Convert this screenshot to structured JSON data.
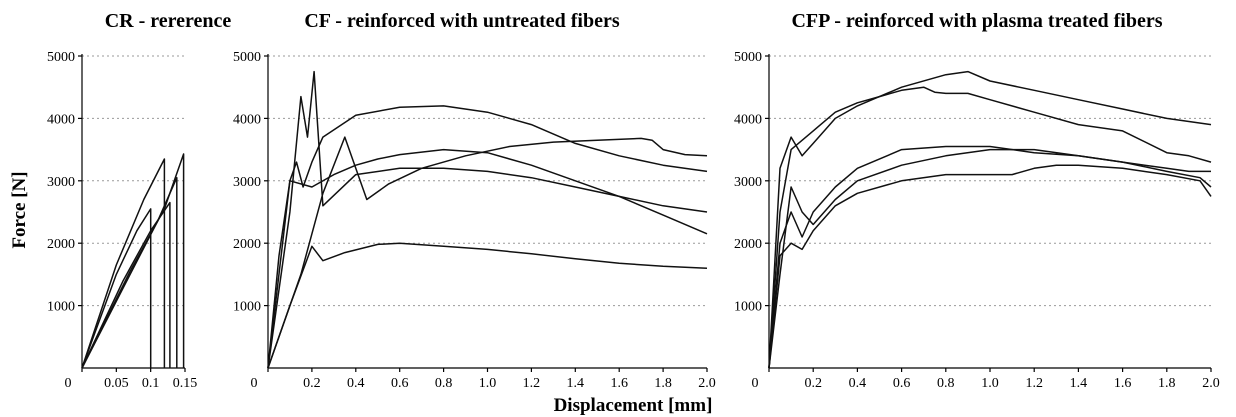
{
  "figure": {
    "ylabel": "Force [N]",
    "xlabel": "Displacement [mm]"
  },
  "chart_data": [
    {
      "type": "line",
      "title": "CR - rererence",
      "xlim": [
        0,
        0.15
      ],
      "ylim": [
        0,
        5000
      ],
      "x_ticks": [
        0,
        0.05,
        0.1,
        0.15
      ],
      "x_tick_labels": [
        "0",
        "0.05",
        "0.1",
        "0.15"
      ],
      "y_ticks": [
        1000,
        2000,
        3000,
        4000,
        5000
      ],
      "y_tick_labels": [
        "1000",
        "2000",
        "3000",
        "4000",
        "5000"
      ],
      "grid": true,
      "series": [
        {
          "x": [
            0,
            0.05,
            0.08,
            0.1,
            0.1
          ],
          "y": [
            0,
            1500,
            2200,
            2550,
            0
          ]
        },
        {
          "x": [
            0,
            0.05,
            0.09,
            0.12,
            0.12
          ],
          "y": [
            0,
            1650,
            2700,
            3350,
            0
          ]
        },
        {
          "x": [
            0,
            0.06,
            0.1,
            0.128,
            0.128
          ],
          "y": [
            0,
            1400,
            2200,
            2650,
            0
          ]
        },
        {
          "x": [
            0,
            0.07,
            0.11,
            0.138,
            0.138
          ],
          "y": [
            0,
            1500,
            2350,
            3050,
            0
          ]
        },
        {
          "x": [
            0,
            0.07,
            0.12,
            0.148,
            0.148
          ],
          "y": [
            0,
            1550,
            2550,
            3430,
            0
          ]
        }
      ]
    },
    {
      "type": "line",
      "title": "CF - reinforced with untreated fibers",
      "xlim": [
        0,
        2.0
      ],
      "ylim": [
        0,
        5000
      ],
      "x_ticks": [
        0,
        0.2,
        0.4,
        0.6,
        0.8,
        1.0,
        1.2,
        1.4,
        1.6,
        1.8,
        2.0
      ],
      "x_tick_labels": [
        "0",
        "0.2",
        "0.4",
        "0.6",
        "0.8",
        "1.0",
        "1.2",
        "1.4",
        "1.6",
        "1.8",
        "2.0"
      ],
      "y_ticks": [
        1000,
        2000,
        3000,
        4000,
        5000
      ],
      "y_tick_labels": [
        "1000",
        "2000",
        "3000",
        "4000",
        "5000"
      ],
      "grid": true,
      "series": [
        {
          "x": [
            0,
            0.1,
            0.15,
            0.18,
            0.21,
            0.25,
            0.4,
            0.6,
            0.8,
            1.0,
            1.2,
            1.4,
            1.6,
            1.8,
            2.0
          ],
          "y": [
            0,
            2500,
            4350,
            3700,
            4750,
            2600,
            3100,
            3200,
            3200,
            3150,
            3050,
            2900,
            2750,
            2600,
            2500
          ]
        },
        {
          "x": [
            0,
            0.05,
            0.1,
            0.13,
            0.16,
            0.2,
            0.25,
            0.4,
            0.6,
            0.8,
            1.0,
            1.2,
            1.4,
            1.6,
            1.8,
            2.0
          ],
          "y": [
            0,
            1800,
            3000,
            3300,
            2900,
            3300,
            3700,
            4050,
            4180,
            4200,
            4100,
            3900,
            3600,
            3400,
            3250,
            3150
          ]
        },
        {
          "x": [
            0,
            0.15,
            0.25,
            0.35,
            0.45,
            0.55,
            0.7,
            0.9,
            1.1,
            1.3,
            1.5,
            1.7,
            1.75,
            1.8,
            1.9,
            2.0
          ],
          "y": [
            0,
            1500,
            2800,
            3700,
            2700,
            2950,
            3200,
            3400,
            3550,
            3620,
            3650,
            3680,
            3650,
            3500,
            3420,
            3400
          ]
        },
        {
          "x": [
            0,
            0.1,
            0.2,
            0.3,
            0.4,
            0.5,
            0.6,
            0.8,
            1.0,
            1.2,
            1.4,
            1.6,
            1.8,
            2.0
          ],
          "y": [
            0,
            3000,
            2900,
            3100,
            3250,
            3350,
            3420,
            3500,
            3450,
            3250,
            3000,
            2750,
            2450,
            2150
          ]
        },
        {
          "x": [
            0,
            0.1,
            0.2,
            0.25,
            0.35,
            0.5,
            0.6,
            0.8,
            1.0,
            1.2,
            1.4,
            1.6,
            1.8,
            2.0
          ],
          "y": [
            0,
            1000,
            1950,
            1720,
            1850,
            1980,
            2000,
            1950,
            1900,
            1830,
            1750,
            1680,
            1630,
            1600
          ]
        }
      ]
    },
    {
      "type": "line",
      "title": "CFP - reinforced with plasma treated fibers",
      "xlim": [
        0,
        2.0
      ],
      "ylim": [
        0,
        5000
      ],
      "x_ticks": [
        0,
        0.2,
        0.4,
        0.6,
        0.8,
        1.0,
        1.2,
        1.4,
        1.6,
        1.8,
        2.0
      ],
      "x_tick_labels": [
        "0",
        "0.2",
        "0.4",
        "0.6",
        "0.8",
        "1.0",
        "1.2",
        "1.4",
        "1.6",
        "1.8",
        "2.0"
      ],
      "y_ticks": [
        1000,
        2000,
        3000,
        4000,
        5000
      ],
      "y_tick_labels": [
        "1000",
        "2000",
        "3000",
        "4000",
        "5000"
      ],
      "grid": true,
      "series": [
        {
          "x": [
            0,
            0.05,
            0.1,
            0.15,
            0.2,
            0.3,
            0.4,
            0.6,
            0.8,
            0.9,
            1.0,
            1.2,
            1.4,
            1.6,
            1.8,
            2.0
          ],
          "y": [
            0,
            3200,
            3700,
            3400,
            3600,
            4000,
            4200,
            4500,
            4700,
            4750,
            4600,
            4450,
            4300,
            4150,
            4000,
            3900
          ]
        },
        {
          "x": [
            0,
            0.05,
            0.1,
            0.2,
            0.3,
            0.4,
            0.5,
            0.6,
            0.7,
            0.75,
            0.8,
            0.9,
            1.0,
            1.2,
            1.4,
            1.6,
            1.8,
            1.9,
            2.0
          ],
          "y": [
            0,
            2500,
            3500,
            3800,
            4100,
            4250,
            4350,
            4450,
            4500,
            4420,
            4400,
            4400,
            4300,
            4100,
            3900,
            3800,
            3450,
            3400,
            3300
          ]
        },
        {
          "x": [
            0,
            0.05,
            0.1,
            0.15,
            0.2,
            0.3,
            0.4,
            0.6,
            0.8,
            1.0,
            1.2,
            1.4,
            1.6,
            1.8,
            1.9,
            2.0
          ],
          "y": [
            0,
            2000,
            2500,
            2100,
            2500,
            2900,
            3200,
            3500,
            3550,
            3550,
            3450,
            3400,
            3300,
            3200,
            3150,
            3150
          ]
        },
        {
          "x": [
            0,
            0.05,
            0.1,
            0.15,
            0.2,
            0.3,
            0.4,
            0.6,
            0.8,
            1.0,
            1.2,
            1.4,
            1.6,
            1.8,
            1.95,
            2.0
          ],
          "y": [
            0,
            1500,
            2900,
            2500,
            2300,
            2700,
            3000,
            3250,
            3400,
            3500,
            3500,
            3400,
            3300,
            3150,
            3050,
            2900
          ]
        },
        {
          "x": [
            0,
            0.05,
            0.1,
            0.15,
            0.2,
            0.3,
            0.4,
            0.6,
            0.8,
            1.0,
            1.1,
            1.2,
            1.3,
            1.4,
            1.6,
            1.8,
            1.95,
            2.0
          ],
          "y": [
            0,
            1800,
            2000,
            1900,
            2200,
            2600,
            2800,
            3000,
            3100,
            3100,
            3100,
            3200,
            3250,
            3250,
            3200,
            3100,
            3000,
            2750
          ]
        }
      ]
    }
  ]
}
